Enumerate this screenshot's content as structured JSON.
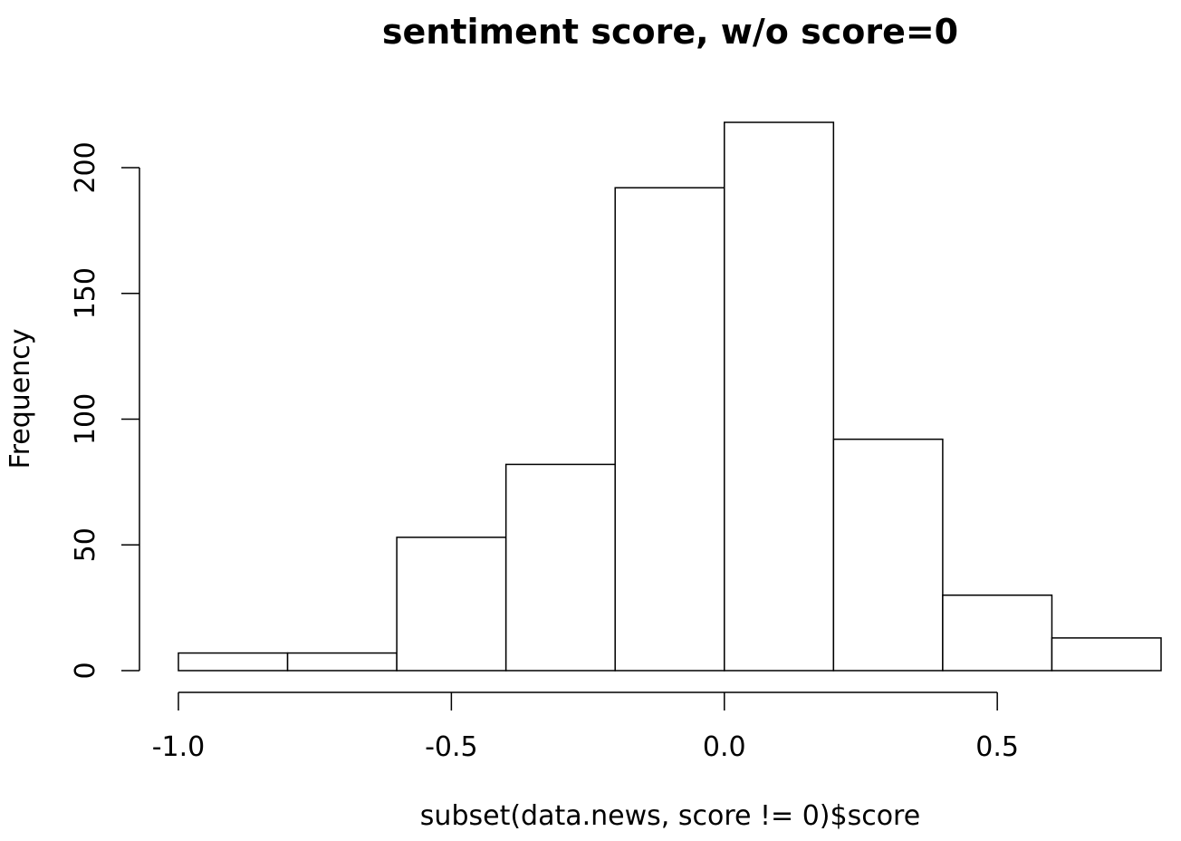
{
  "chart_data": {
    "type": "bar",
    "title": "sentiment score, w/o score=0",
    "xlabel": "subset(data.news, score != 0)$score",
    "ylabel": "Frequency",
    "bins": [
      {
        "start": -1.0,
        "end": -0.8,
        "count": 7
      },
      {
        "start": -0.8,
        "end": -0.6,
        "count": 7
      },
      {
        "start": -0.6,
        "end": -0.4,
        "count": 53
      },
      {
        "start": -0.4,
        "end": -0.2,
        "count": 82
      },
      {
        "start": -0.2,
        "end": 0.0,
        "count": 192
      },
      {
        "start": 0.0,
        "end": 0.2,
        "count": 218
      },
      {
        "start": 0.2,
        "end": 0.4,
        "count": 92
      },
      {
        "start": 0.4,
        "end": 0.6,
        "count": 30
      },
      {
        "start": 0.6,
        "end": 0.8,
        "count": 13
      }
    ],
    "xlim": [
      -1.0,
      0.8
    ],
    "ylim": [
      0,
      218
    ],
    "x_ticks": [
      -1.0,
      -0.5,
      0.0,
      0.5
    ],
    "x_tick_labels": [
      "-1.0",
      "-0.5",
      "0.0",
      "0.5"
    ],
    "y_ticks": [
      0,
      50,
      100,
      150,
      200
    ],
    "y_tick_labels": [
      "0",
      "50",
      "100",
      "150",
      "200"
    ],
    "grid": false,
    "legend": "none",
    "colors": {
      "bar_fill": "#ffffff",
      "bar_stroke": "#000000",
      "background": "#ffffff"
    }
  }
}
